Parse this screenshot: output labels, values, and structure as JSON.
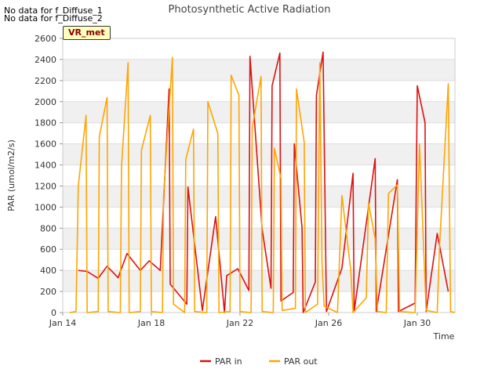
{
  "notes": {
    "nodata_1": "No data for f_Diffuse_1",
    "nodata_2": "No data for f_Diffuse_2",
    "tag": "VR_met"
  },
  "colors": {
    "par_in": "#dd1111",
    "par_out": "#ffa500",
    "band": "#f0f0f0"
  },
  "chart_data": {
    "type": "line",
    "title": "Photosynthetic Active Radiation",
    "xlabel": "Time",
    "ylabel": "PAR (umol/m2/s)",
    "xlim": [
      14,
      31.7
    ],
    "ylim": [
      0,
      2600
    ],
    "x_ticks": [
      14,
      18,
      22,
      26,
      30
    ],
    "x_tick_labels": [
      "Jan 14",
      "Jan 18",
      "Jan 22",
      "Jan 26",
      "Jan 30"
    ],
    "y_ticks": [
      0,
      200,
      400,
      600,
      800,
      1000,
      1200,
      1400,
      1600,
      1800,
      2000,
      2200,
      2400,
      2600
    ],
    "legend": "bottom-center",
    "series": [
      {
        "name": "PAR in",
        "color": "#dd1111",
        "points": [
          [
            14.7,
            400
          ],
          [
            15.1,
            390
          ],
          [
            15.6,
            325
          ],
          [
            16.0,
            440
          ],
          [
            16.5,
            330
          ],
          [
            16.9,
            560
          ],
          [
            17.5,
            400
          ],
          [
            17.9,
            490
          ],
          [
            18.4,
            400
          ],
          [
            18.8,
            2120
          ],
          [
            18.85,
            270
          ],
          [
            19.6,
            80
          ],
          [
            19.65,
            1190
          ],
          [
            20.3,
            20
          ],
          [
            20.9,
            910
          ],
          [
            21.3,
            0
          ],
          [
            21.4,
            350
          ],
          [
            21.9,
            415
          ],
          [
            22.4,
            210
          ],
          [
            22.45,
            2430
          ],
          [
            23.0,
            790
          ],
          [
            23.4,
            230
          ],
          [
            23.45,
            2150
          ],
          [
            23.8,
            2460
          ],
          [
            23.85,
            110
          ],
          [
            24.4,
            190
          ],
          [
            24.45,
            1600
          ],
          [
            24.8,
            800
          ],
          [
            24.85,
            0
          ],
          [
            25.4,
            290
          ],
          [
            25.45,
            2060
          ],
          [
            25.75,
            2470
          ],
          [
            25.9,
            10
          ],
          [
            26.6,
            420
          ],
          [
            27.1,
            1320
          ],
          [
            27.15,
            10
          ],
          [
            28.1,
            1460
          ],
          [
            28.15,
            10
          ],
          [
            29.1,
            1260
          ],
          [
            29.15,
            10
          ],
          [
            29.9,
            90
          ],
          [
            30.0,
            2150
          ],
          [
            30.35,
            1800
          ],
          [
            30.4,
            10
          ],
          [
            30.9,
            750
          ],
          [
            31.4,
            200
          ]
        ]
      },
      {
        "name": "PAR out",
        "color": "#ffa500",
        "points": [
          [
            14.3,
            0
          ],
          [
            14.6,
            10
          ],
          [
            14.7,
            1200
          ],
          [
            15.05,
            1870
          ],
          [
            15.1,
            0
          ],
          [
            15.6,
            10
          ],
          [
            15.65,
            1670
          ],
          [
            16.0,
            2040
          ],
          [
            16.05,
            10
          ],
          [
            16.6,
            0
          ],
          [
            16.65,
            1380
          ],
          [
            16.95,
            2370
          ],
          [
            17.0,
            0
          ],
          [
            17.5,
            10
          ],
          [
            17.55,
            1540
          ],
          [
            17.95,
            1870
          ],
          [
            18.0,
            10
          ],
          [
            18.5,
            0
          ],
          [
            18.55,
            1100
          ],
          [
            18.95,
            2420
          ],
          [
            19.0,
            80
          ],
          [
            19.5,
            0
          ],
          [
            19.55,
            1450
          ],
          [
            19.9,
            1740
          ],
          [
            19.95,
            10
          ],
          [
            20.5,
            0
          ],
          [
            20.55,
            2000
          ],
          [
            21.0,
            1700
          ],
          [
            21.05,
            0
          ],
          [
            21.55,
            10
          ],
          [
            21.6,
            2250
          ],
          [
            21.95,
            2060
          ],
          [
            22.0,
            10
          ],
          [
            22.5,
            0
          ],
          [
            22.55,
            1750
          ],
          [
            22.95,
            2240
          ],
          [
            23.0,
            10
          ],
          [
            23.5,
            0
          ],
          [
            23.55,
            1560
          ],
          [
            23.85,
            1270
          ],
          [
            23.9,
            20
          ],
          [
            24.5,
            40
          ],
          [
            24.55,
            2120
          ],
          [
            24.9,
            1610
          ],
          [
            24.95,
            0
          ],
          [
            25.5,
            80
          ],
          [
            25.6,
            2370
          ],
          [
            25.7,
            480
          ],
          [
            25.8,
            60
          ],
          [
            26.4,
            0
          ],
          [
            26.6,
            1110
          ],
          [
            27.0,
            400
          ],
          [
            27.1,
            0
          ],
          [
            27.7,
            140
          ],
          [
            27.8,
            1040
          ],
          [
            28.1,
            700
          ],
          [
            28.2,
            10
          ],
          [
            28.6,
            0
          ],
          [
            28.7,
            1130
          ],
          [
            29.1,
            1210
          ],
          [
            29.2,
            10
          ],
          [
            29.9,
            0
          ],
          [
            30.1,
            1600
          ],
          [
            30.4,
            20
          ],
          [
            30.9,
            0
          ],
          [
            31.0,
            600
          ],
          [
            31.4,
            2170
          ],
          [
            31.5,
            10
          ],
          [
            31.7,
            0
          ]
        ]
      }
    ]
  }
}
